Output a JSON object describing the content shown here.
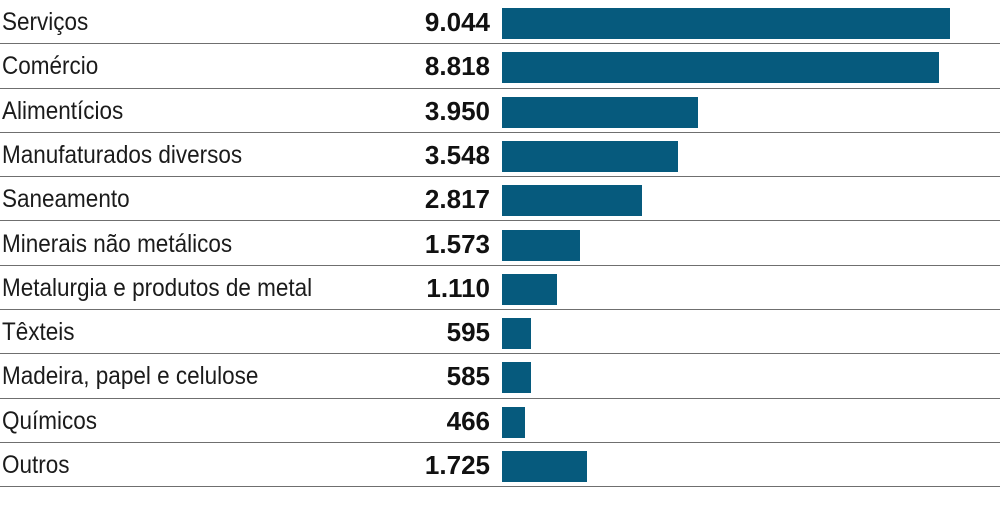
{
  "chart_data": {
    "type": "bar",
    "orientation": "horizontal",
    "title": "",
    "categories": [
      "Serviços",
      "Comércio",
      "Alimentícios",
      "Manufaturados diversos",
      "Saneamento",
      "Minerais não metálicos",
      "Metalurgia e produtos de metal",
      "Têxteis",
      "Madeira, papel e celulose",
      "Químicos",
      "Outros"
    ],
    "values": [
      9044,
      8818,
      3950,
      3548,
      2817,
      1573,
      1110,
      595,
      585,
      466,
      1725
    ],
    "value_labels": [
      "9.044",
      "8.818",
      "3.950",
      "3.548",
      "2.817",
      "1.573",
      "1.110",
      "595",
      "585",
      "466",
      "1.725"
    ],
    "xlim": [
      0,
      10000
    ],
    "bar_color": "#065a7d",
    "grid": false,
    "legend": "none"
  }
}
